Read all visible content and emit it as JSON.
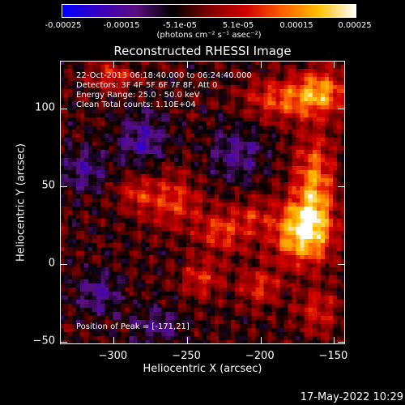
{
  "colorbar": {
    "tick_labels": [
      "-0.00025",
      "-0.00015",
      "-5.1e-05",
      "5.1e-05",
      "0.00015",
      "0.00025"
    ],
    "units": "(photons cm⁻² s⁻¹ asec⁻²)",
    "colors": [
      "#0000ff",
      "#3a00c0",
      "#5a1080",
      "#000000",
      "#800000",
      "#d00000",
      "#ff6000",
      "#ffc000",
      "#ffffff"
    ]
  },
  "chart_data": {
    "type": "heatmap",
    "title": "Reconstructed RHESSI Image",
    "xlabel": "Heliocentric X (arcsec)",
    "ylabel": "Heliocentric Y (arcsec)",
    "xlim": [
      -336,
      -142
    ],
    "ylim": [
      -52,
      130
    ],
    "x_ticks": [
      -300,
      -250,
      -200,
      -150
    ],
    "y_ticks": [
      -50,
      0,
      50,
      100
    ],
    "x_tick_labels": [
      "−300",
      "−250",
      "−200",
      "−150"
    ],
    "y_tick_labels": [
      "−50",
      "0",
      "50",
      "100"
    ],
    "vmin": -0.00025,
    "vmax": 0.00025,
    "peak": [
      -171,
      21
    ],
    "sources": [
      {
        "x": -172,
        "y": 20,
        "sx": 14,
        "sy": 14,
        "amp": 1.0
      },
      {
        "x": -163,
        "y": 50,
        "sx": 9,
        "sy": 22,
        "amp": 0.75
      },
      {
        "x": -158,
        "y": 110,
        "sx": 12,
        "sy": 10,
        "amp": 0.7
      },
      {
        "x": -185,
        "y": 105,
        "sx": 18,
        "sy": 9,
        "amp": 0.55
      },
      {
        "x": -260,
        "y": 40,
        "sx": 14,
        "sy": 12,
        "amp": 0.5
      },
      {
        "x": -225,
        "y": 20,
        "sx": 12,
        "sy": 10,
        "amp": 0.5
      },
      {
        "x": -240,
        "y": -10,
        "sx": 10,
        "sy": 8,
        "amp": 0.45
      },
      {
        "x": -300,
        "y": 120,
        "sx": 10,
        "sy": 6,
        "amp": 0.45
      },
      {
        "x": -200,
        "y": -15,
        "sx": 9,
        "sy": 9,
        "amp": 0.45
      },
      {
        "x": -160,
        "y": -30,
        "sx": 10,
        "sy": 10,
        "amp": 0.4
      },
      {
        "x": -285,
        "y": 45,
        "sx": 8,
        "sy": 8,
        "amp": 0.35
      },
      {
        "x": -205,
        "y": 30,
        "sx": 8,
        "sy": 8,
        "amp": 0.3
      },
      {
        "x": -310,
        "y": -20,
        "sx": 10,
        "sy": 10,
        "amp": -0.4
      },
      {
        "x": -280,
        "y": 80,
        "sx": 12,
        "sy": 12,
        "amp": -0.45
      },
      {
        "x": -215,
        "y": 70,
        "sx": 12,
        "sy": 12,
        "amp": -0.4
      },
      {
        "x": -270,
        "y": -40,
        "sx": 12,
        "sy": 8,
        "amp": -0.35
      },
      {
        "x": -320,
        "y": 60,
        "sx": 10,
        "sy": 10,
        "amp": -0.4
      }
    ]
  },
  "annotations": {
    "time_range": "22-Oct-2013 06:18:40.000 to 06:24:40.000",
    "detectors": "Detectors: 3F 4F 5F 6F 7F 8F, Att 0",
    "energy": "Energy Range: 25.0 - 50.0 keV",
    "clean": "Clean    Total counts: 1.10E+04",
    "peak": "Position of Peak = [-171,21]"
  },
  "timestamp": "17-May-2022 10:29"
}
